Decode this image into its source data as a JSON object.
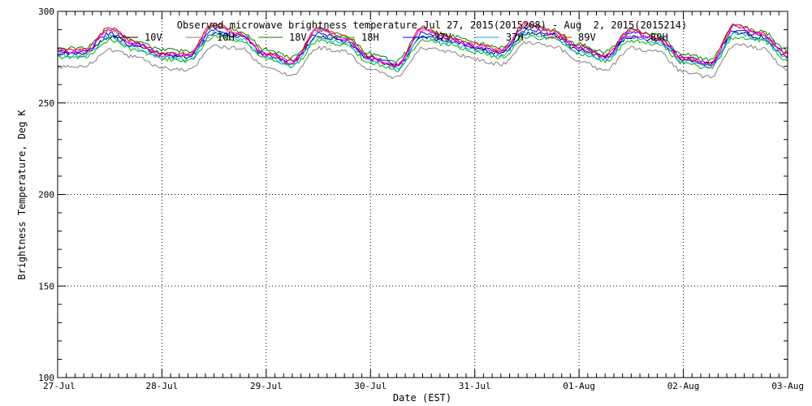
{
  "chart_data": {
    "type": "line",
    "title": "Observed microwave brightness temperature Jul 27, 2015(2015208) - Aug  2, 2015(2015214)",
    "xlabel": "Date (EST)",
    "ylabel": "Brightness Temperature, Deg K",
    "x_start": "2015-07-27",
    "x_end": "2015-08-03",
    "x_ticks": [
      "27-Jul",
      "28-Jul",
      "29-Jul",
      "30-Jul",
      "31-Jul",
      "01-Aug",
      "02-Aug",
      "03-Aug"
    ],
    "y_ticks": [
      100,
      150,
      200,
      250,
      300
    ],
    "ylim": [
      100,
      300
    ],
    "grid": true,
    "legend": "top",
    "x": [
      "2015-07-27T00:00",
      "2015-07-27T06:00",
      "2015-07-27T12:00",
      "2015-07-27T18:00",
      "2015-07-28T00:00",
      "2015-07-28T06:00",
      "2015-07-28T12:00",
      "2015-07-28T18:00",
      "2015-07-29T00:00",
      "2015-07-29T06:00",
      "2015-07-29T12:00",
      "2015-07-29T18:00",
      "2015-07-30T00:00",
      "2015-07-30T06:00",
      "2015-07-30T12:00",
      "2015-07-30T18:00",
      "2015-07-31T00:00",
      "2015-07-31T06:00",
      "2015-07-31T12:00",
      "2015-07-31T18:00",
      "2015-08-01T00:00",
      "2015-08-01T06:00",
      "2015-08-01T12:00",
      "2015-08-01T18:00",
      "2015-08-02T00:00",
      "2015-08-02T06:00",
      "2015-08-02T12:00",
      "2015-08-02T18:00",
      "2015-08-03T00:00"
    ],
    "series": [
      {
        "name": "10V",
        "color": "#000000",
        "values": [
          277,
          277,
          286,
          281,
          276,
          275,
          288,
          286,
          276,
          272,
          286,
          284,
          274,
          270,
          286,
          284,
          280,
          277,
          288,
          287,
          279,
          275,
          286,
          284,
          274,
          271,
          288,
          286,
          275
        ]
      },
      {
        "name": "10H",
        "color": "#808080",
        "values": [
          270,
          270,
          279,
          275,
          269,
          268,
          281,
          280,
          270,
          265,
          280,
          278,
          268,
          264,
          280,
          278,
          274,
          271,
          283,
          281,
          273,
          268,
          280,
          278,
          267,
          264,
          282,
          280,
          268
        ]
      },
      {
        "name": "18V",
        "color": "#008000",
        "values": [
          280,
          280,
          290,
          284,
          279,
          278,
          292,
          289,
          279,
          275,
          290,
          287,
          277,
          273,
          290,
          287,
          283,
          280,
          292,
          290,
          282,
          278,
          290,
          287,
          277,
          274,
          292,
          289,
          279
        ]
      },
      {
        "name": "18H",
        "color": "#00b000",
        "values": [
          275,
          275,
          284,
          279,
          274,
          273,
          286,
          284,
          274,
          270,
          284,
          282,
          272,
          268,
          284,
          282,
          278,
          275,
          286,
          285,
          277,
          273,
          284,
          282,
          272,
          269,
          286,
          284,
          273
        ]
      },
      {
        "name": "37V",
        "color": "#0000ff",
        "values": [
          278,
          278,
          288,
          282,
          277,
          276,
          290,
          287,
          277,
          273,
          288,
          285,
          275,
          271,
          288,
          285,
          281,
          278,
          290,
          288,
          280,
          276,
          288,
          285,
          275,
          272,
          290,
          287,
          277
        ]
      },
      {
        "name": "37H",
        "color": "#00aaff",
        "values": [
          276,
          276,
          286,
          280,
          275,
          274,
          288,
          285,
          275,
          271,
          286,
          283,
          273,
          269,
          286,
          283,
          279,
          276,
          288,
          286,
          278,
          274,
          286,
          283,
          273,
          270,
          288,
          285,
          275
        ]
      },
      {
        "name": "89V",
        "color": "#ff0000",
        "values": [
          279,
          279,
          291,
          283,
          277,
          277,
          293,
          288,
          277,
          273,
          291,
          286,
          275,
          271,
          291,
          286,
          282,
          279,
          294,
          289,
          281,
          276,
          290,
          286,
          275,
          272,
          293,
          288,
          277
        ]
      },
      {
        "name": "89H",
        "color": "#ff00ff",
        "values": [
          278,
          278,
          290,
          282,
          276,
          276,
          292,
          287,
          276,
          272,
          290,
          285,
          274,
          270,
          290,
          285,
          281,
          278,
          293,
          288,
          280,
          275,
          289,
          285,
          274,
          271,
          292,
          287,
          276
        ]
      }
    ]
  }
}
